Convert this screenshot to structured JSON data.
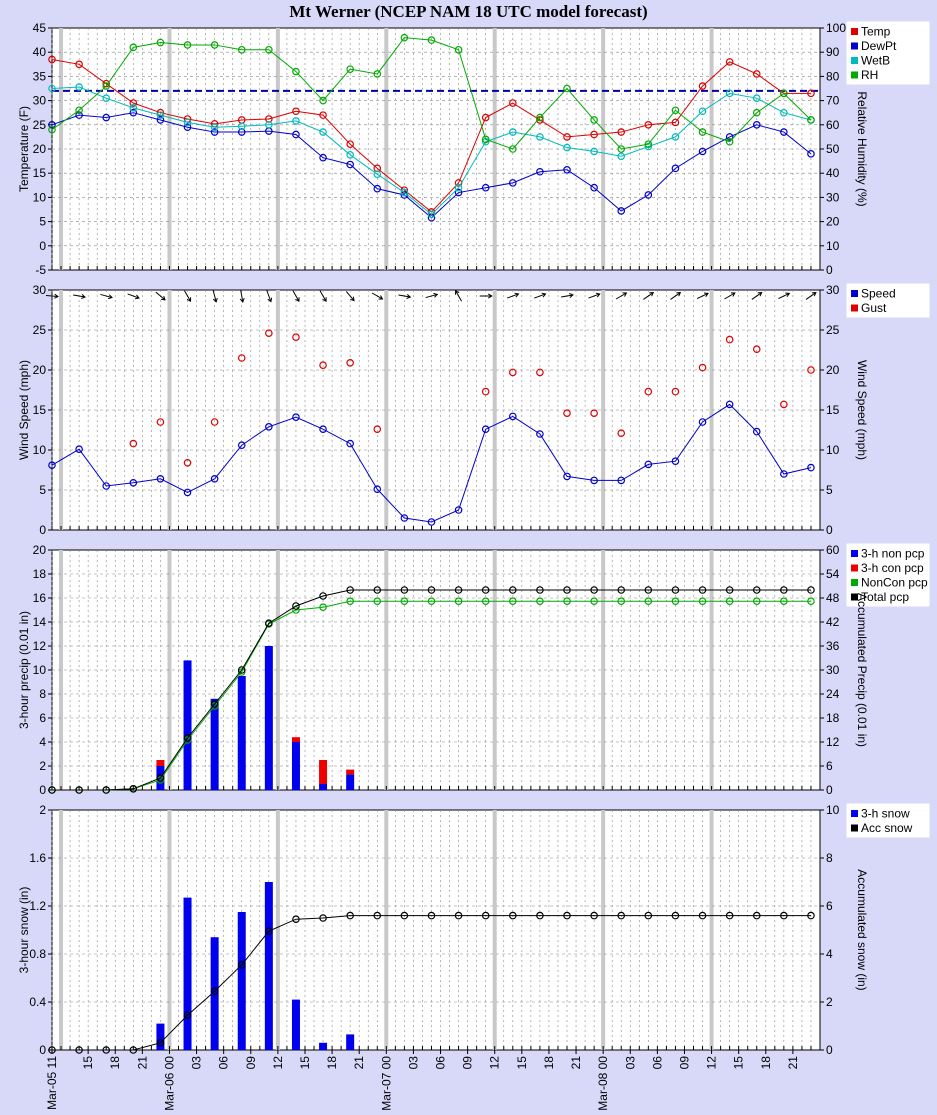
{
  "title": "Mt Werner (NCEP NAM 18 UTC model forecast)",
  "chart_data": [
    {
      "type": "line",
      "ylabel": "Temperature (F)",
      "y2label": "Relative Humidity (%)",
      "ylim": [
        -5,
        45
      ],
      "yticks": [
        -5,
        0,
        5,
        10,
        15,
        20,
        25,
        30,
        35,
        40,
        45
      ],
      "y2lim": [
        0,
        100
      ],
      "y2ticks": [
        0,
        10,
        20,
        30,
        40,
        50,
        60,
        70,
        80,
        90,
        100
      ],
      "reference_line": {
        "value": 32,
        "color": "#0000aa",
        "style": "dashed"
      },
      "legend": [
        "Temp",
        "DewPt",
        "WetB",
        "RH"
      ],
      "legend_position": "top-right",
      "series": [
        {
          "name": "Temp",
          "color": "#dd0000",
          "axis": "left",
          "values": [
            38.5,
            37.5,
            33.5,
            29.5,
            27.5,
            26.2,
            25.2,
            26.0,
            26.2,
            27.8,
            27.0,
            21.0,
            16.0,
            11.5,
            7.0,
            13.0,
            26.5,
            29.5,
            26.0,
            22.5,
            23.0,
            23.5,
            25.0,
            25.5,
            33.0,
            38.0,
            35.5,
            31.5,
            31.5
          ]
        },
        {
          "name": "DewPt",
          "color": "#0000cc",
          "axis": "left",
          "values": [
            25.0,
            27.0,
            26.5,
            27.5,
            26.0,
            24.5,
            23.5,
            23.5,
            23.7,
            23.0,
            18.2,
            16.8,
            11.8,
            10.5,
            5.8,
            11.0,
            12.0,
            13.0,
            15.3,
            15.7,
            12.0,
            7.2,
            10.5,
            16.0,
            19.5,
            22.5,
            25.0,
            23.5,
            19.0
          ]
        },
        {
          "name": "WetB",
          "color": "#00bbbb",
          "axis": "left",
          "values": [
            32.5,
            32.8,
            30.5,
            28.5,
            27.0,
            25.5,
            24.5,
            24.7,
            25.0,
            25.8,
            23.5,
            18.8,
            14.8,
            11.0,
            6.5,
            12.0,
            21.5,
            23.5,
            22.5,
            20.3,
            19.5,
            18.5,
            20.5,
            22.5,
            27.8,
            31.5,
            30.5,
            27.5,
            26.0
          ]
        },
        {
          "name": "RH",
          "color": "#00aa00",
          "axis": "right",
          "values": [
            58,
            66,
            76,
            92,
            94,
            93,
            93,
            91,
            91,
            82,
            70,
            83,
            81,
            96,
            95,
            91,
            54,
            50,
            63,
            75,
            62,
            50,
            52,
            66,
            57,
            53,
            65,
            73,
            62
          ]
        }
      ]
    },
    {
      "type": "scatter",
      "ylabel": "Wind Speed (mph)",
      "y2label": "Wind Speed (mph)",
      "ylim": [
        0,
        30
      ],
      "yticks": [
        0,
        5,
        10,
        15,
        20,
        25,
        30
      ],
      "legend": [
        "Speed",
        "Gust"
      ],
      "legend_position": "top-right",
      "wind_direction_deg": [
        275,
        280,
        285,
        290,
        310,
        330,
        345,
        350,
        340,
        330,
        330,
        320,
        300,
        280,
        255,
        150,
        270,
        250,
        250,
        260,
        250,
        240,
        235,
        235,
        245,
        240,
        235,
        245,
        235
      ],
      "series": [
        {
          "name": "Speed",
          "color": "#0000cc",
          "line": true,
          "values": [
            8.1,
            10.1,
            5.5,
            5.9,
            6.4,
            4.7,
            6.4,
            10.6,
            12.9,
            14.1,
            12.6,
            10.8,
            5.1,
            1.5,
            1.0,
            2.5,
            12.6,
            14.2,
            12.0,
            6.7,
            6.2,
            6.2,
            8.2,
            8.6,
            13.5,
            15.7,
            12.3,
            7.0,
            7.8
          ]
        },
        {
          "name": "Gust",
          "color": "#dd0000",
          "line": false,
          "values": [
            null,
            null,
            null,
            10.8,
            13.5,
            8.4,
            13.5,
            21.5,
            24.6,
            24.1,
            20.6,
            20.9,
            12.6,
            null,
            null,
            null,
            17.3,
            19.7,
            19.7,
            14.6,
            14.6,
            12.1,
            17.3,
            17.3,
            20.3,
            23.8,
            22.6,
            15.7,
            20.0
          ]
        }
      ]
    },
    {
      "type": "bar",
      "ylabel": "3-hour precip (0.01 in)",
      "y2label": "Accumulated Precip (0.01 in)",
      "ylim": [
        0,
        20
      ],
      "yticks": [
        0,
        2,
        4,
        6,
        8,
        10,
        12,
        14,
        16,
        18,
        20
      ],
      "y2lim": [
        0,
        60
      ],
      "y2ticks": [
        0,
        6,
        12,
        18,
        24,
        30,
        36,
        42,
        48,
        54,
        60
      ],
      "legend": [
        "3-h non pcp",
        "3-h con pcp",
        "NonCon pcp",
        "Total pcp"
      ],
      "legend_position": "top-right",
      "series": [
        {
          "name": "3-h non pcp",
          "color": "#0000ee",
          "type": "bar",
          "values": [
            0,
            0,
            0,
            0,
            2.0,
            10.8,
            7.6,
            9.5,
            12.0,
            4.0,
            0.5,
            1.3,
            0,
            0,
            0,
            0,
            0,
            0,
            0,
            0,
            0,
            0,
            0,
            0,
            0,
            0,
            0,
            0,
            0
          ]
        },
        {
          "name": "3-h con pcp",
          "color": "#ee0000",
          "type": "bar",
          "values": [
            0,
            0,
            0,
            0,
            0.5,
            0,
            0,
            0,
            0,
            0.4,
            2.0,
            0.4,
            0,
            0,
            0,
            0,
            0,
            0,
            0,
            0,
            0,
            0,
            0,
            0,
            0,
            0,
            0,
            0,
            0
          ]
        },
        {
          "name": "NonCon pcp",
          "color": "#00aa00",
          "type": "line",
          "axis": "right",
          "values": [
            0,
            0,
            0,
            0.3,
            2.5,
            12.5,
            21.0,
            29.5,
            41.5,
            45.0,
            45.7,
            47.2,
            47.2,
            47.2,
            47.2,
            47.2,
            47.2,
            47.2,
            47.2,
            47.2,
            47.2,
            47.2,
            47.2,
            47.2,
            47.2,
            47.2,
            47.2,
            47.2,
            47.2
          ]
        },
        {
          "name": "Total pcp",
          "color": "#000000",
          "type": "line",
          "axis": "right",
          "values": [
            0,
            0,
            0,
            0.3,
            3.0,
            13.0,
            21.5,
            30.0,
            41.7,
            46.0,
            48.5,
            50.0,
            50.0,
            50.0,
            50.0,
            50.0,
            50.0,
            50.0,
            50.0,
            50.0,
            50.0,
            50.0,
            50.0,
            50.0,
            50.0,
            50.0,
            50.0,
            50.0,
            50.0
          ]
        }
      ]
    },
    {
      "type": "bar",
      "ylabel": "3-hour snow (in)",
      "y2label": "Accumulated snow (in)",
      "ylim": [
        0,
        2
      ],
      "yticks": [
        "0",
        "0.4",
        "0.8",
        "1.2",
        "1.6",
        "2"
      ],
      "y2lim": [
        0,
        10
      ],
      "y2ticks": [
        0,
        2,
        4,
        6,
        8,
        10
      ],
      "legend": [
        "3-h snow",
        "Acc snow"
      ],
      "legend_position": "top-right",
      "series": [
        {
          "name": "3-h snow",
          "color": "#0000ee",
          "type": "bar",
          "values": [
            0,
            0,
            0,
            0,
            0.22,
            1.27,
            0.94,
            1.15,
            1.4,
            0.42,
            0.06,
            0.13,
            0,
            0,
            0,
            0,
            0,
            0,
            0,
            0,
            0,
            0,
            0,
            0,
            0,
            0,
            0,
            0,
            0
          ]
        },
        {
          "name": "Acc snow",
          "color": "#000000",
          "type": "line",
          "axis": "right",
          "values": [
            0,
            0,
            0,
            0,
            0.3,
            1.45,
            2.45,
            3.55,
            4.95,
            5.45,
            5.5,
            5.6,
            5.6,
            5.6,
            5.6,
            5.6,
            5.6,
            5.6,
            5.6,
            5.6,
            5.6,
            5.6,
            5.6,
            5.6,
            5.6,
            5.6,
            5.6,
            5.6,
            5.6
          ]
        }
      ]
    }
  ],
  "x_axis": {
    "tick_labels": [
      "Mar-05 11",
      "15",
      "18",
      "21",
      "Mar-06 00",
      "03",
      "06",
      "09",
      "12",
      "15",
      "18",
      "21",
      "Mar-07 00",
      "03",
      "06",
      "09",
      "12",
      "15",
      "18",
      "21",
      "Mar-08 00",
      "03",
      "06",
      "09",
      "12",
      "15",
      "18",
      "21"
    ],
    "tick_hours": [
      11,
      15,
      18,
      21,
      24,
      27,
      30,
      33,
      36,
      39,
      42,
      45,
      48,
      51,
      54,
      57,
      60,
      63,
      66,
      69,
      72,
      75,
      78,
      81,
      84,
      87,
      90,
      93
    ],
    "data_hours": [
      11,
      14,
      17,
      20,
      23,
      26,
      29,
      32,
      35,
      38,
      41,
      44,
      47,
      50,
      53,
      56,
      59,
      62,
      65,
      68,
      71,
      74,
      77,
      80,
      83,
      86,
      89,
      92,
      95
    ],
    "range_hours": [
      11,
      96
    ]
  }
}
